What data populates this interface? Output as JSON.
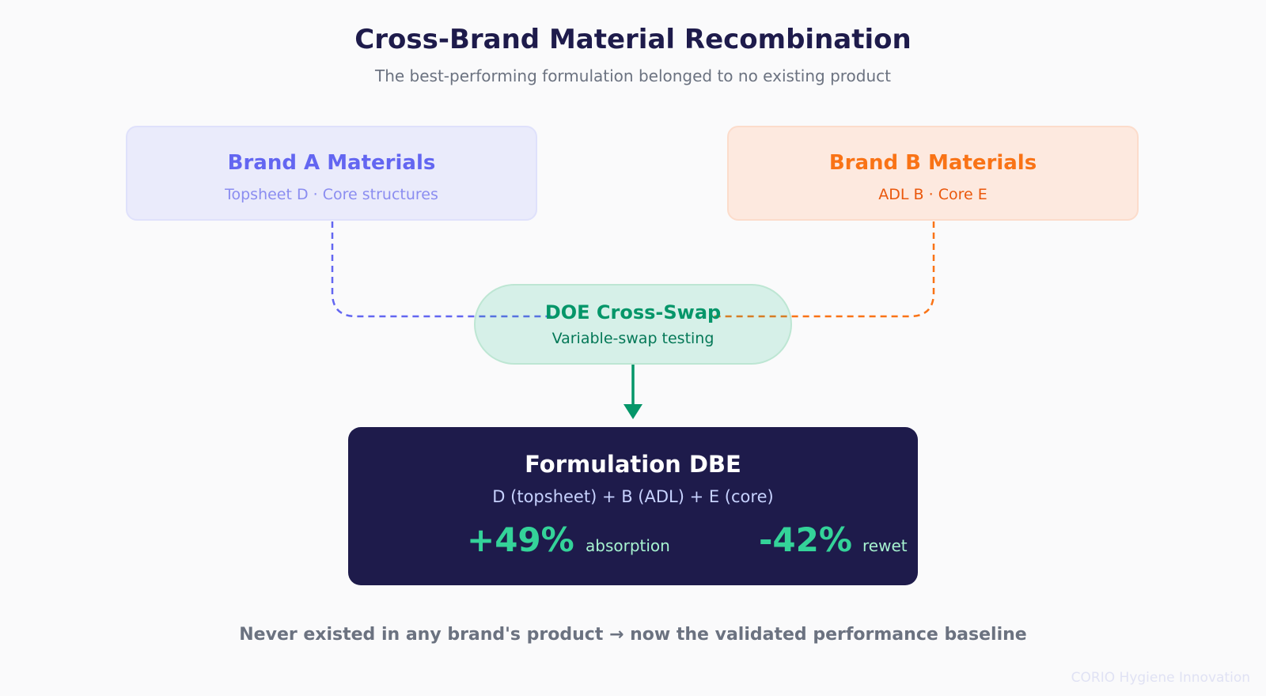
{
  "header": {
    "title": "Cross-Brand Material Recombination",
    "subtitle": "The best-performing formulation belonged to no existing product"
  },
  "brand_a": {
    "title": "Brand A Materials",
    "subtitle": "Topsheet D · Core structures",
    "color": "#6366f1"
  },
  "brand_b": {
    "title": "Brand B Materials",
    "subtitle": "ADL B · Core E",
    "color": "#f97316"
  },
  "doe": {
    "title": "DOE Cross-Swap",
    "subtitle": "Variable-swap testing",
    "color": "#059669"
  },
  "result": {
    "title": "Formulation DBE",
    "formula": "D (topsheet) + B (ADL) + E (core)",
    "metrics": [
      {
        "value": "+49%",
        "label": "absorption"
      },
      {
        "value": "-42%",
        "label": "rewet"
      }
    ],
    "background": "#1e1b4b",
    "accent": "#34d399"
  },
  "footer": {
    "text": "Never existed in any brand's product → now the validated performance baseline"
  },
  "watermark": "CORIO Hygiene Innovation"
}
